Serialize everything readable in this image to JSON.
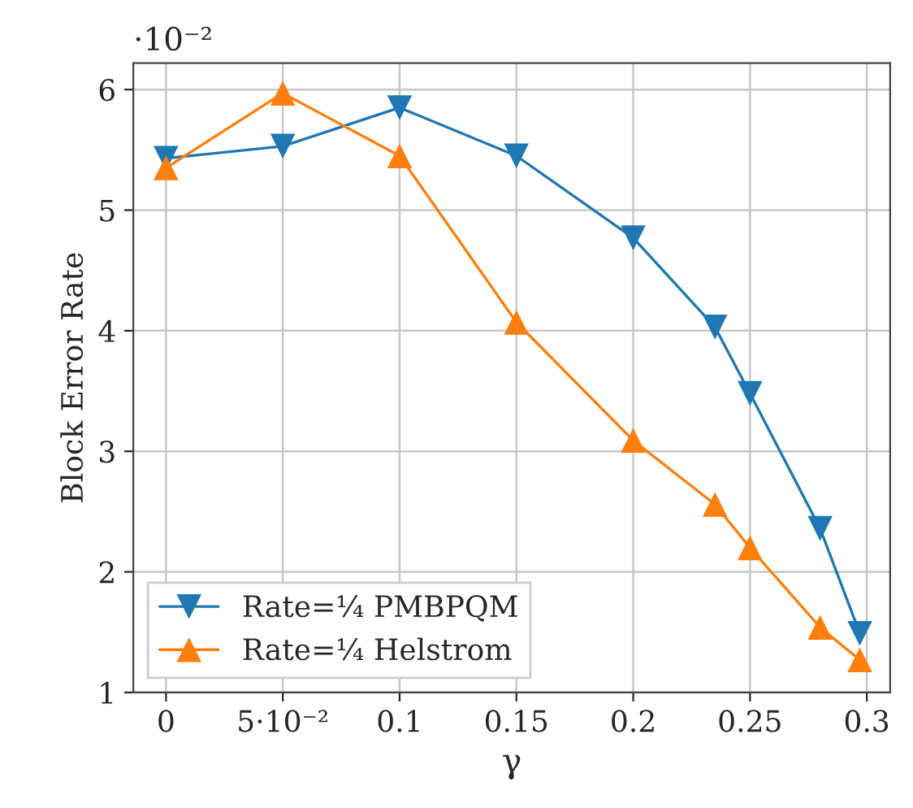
{
  "chart_data": {
    "type": "line",
    "xlabel": "γ",
    "ylabel": "Block Error Rate",
    "annotations": [
      "·10⁻²"
    ],
    "xlim": [
      -0.014,
      0.31
    ],
    "xticks": [
      0,
      {
        "value": 0.05,
        "label": "5·10⁻²"
      },
      0.1,
      0.15,
      0.2,
      0.25,
      0.3
    ],
    "ylim": [
      1,
      6.22
    ],
    "yticks": [
      1,
      2,
      3,
      4,
      5,
      6
    ],
    "grid": true,
    "legend": "bottom left",
    "series": [
      {
        "name": "Rate=¼ PMBPQM",
        "color": "#1f77b4",
        "marker": "triangle_down",
        "x": [
          0,
          0.05,
          0.1,
          0.15,
          0.2,
          0.235,
          0.25,
          0.28,
          0.297
        ],
        "values": [
          5.43,
          5.53,
          5.85,
          5.45,
          4.77,
          4.03,
          3.48,
          2.36,
          1.49
        ]
      },
      {
        "name": "Rate=¼ Helstrom",
        "color": "#ff7f0e",
        "marker": "triangle",
        "x": [
          0,
          0.05,
          0.1,
          0.15,
          0.2,
          0.235,
          0.25,
          0.28,
          0.297
        ],
        "values": [
          5.35,
          5.97,
          5.45,
          4.07,
          3.09,
          2.56,
          2.2,
          1.54,
          1.27
        ]
      }
    ]
  }
}
